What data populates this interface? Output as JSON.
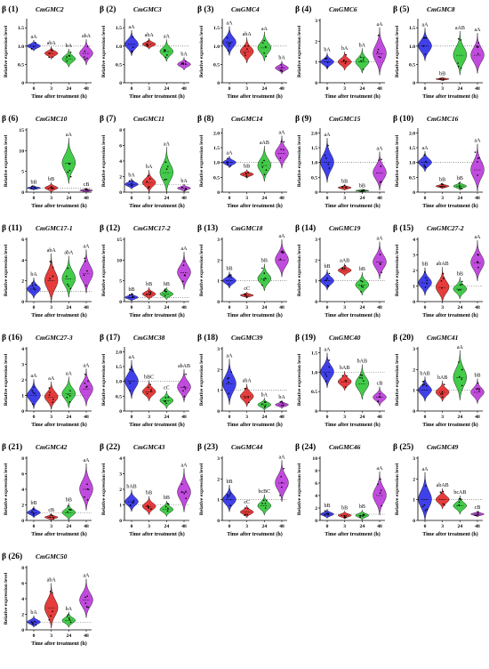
{
  "shared": {
    "xlabel": "Time after treatment (h)",
    "ylabel": "Relative expression level",
    "colors": [
      "#1f1fe6",
      "#e21a1a",
      "#22c22a",
      "#b62bd8"
    ]
  },
  "chart_data": [
    {
      "type": "violin",
      "panel": "β (1)",
      "gene": "CmGMC2",
      "categories": [
        "0",
        "3",
        "24",
        "48"
      ],
      "yticks": [
        0,
        0.5,
        1.0,
        1.5
      ],
      "ylim": [
        0,
        1.7
      ],
      "medians": [
        1.0,
        0.8,
        0.65,
        0.8
      ],
      "spreads": [
        0.3,
        0.35,
        0.5,
        0.7
      ],
      "sig_labels": [
        "aA",
        "abA",
        "bA",
        "abA"
      ]
    },
    {
      "type": "violin",
      "panel": "β (2)",
      "gene": "CmGMC3",
      "categories": [
        "0",
        "3",
        "24",
        "48"
      ],
      "yticks": [
        0,
        0.5,
        1.0,
        1.5
      ],
      "ylim": [
        0,
        1.7
      ],
      "medians": [
        1.05,
        1.05,
        0.85,
        0.5
      ],
      "spreads": [
        0.7,
        0.3,
        0.6,
        0.35
      ],
      "sig_labels": [
        "aA",
        "abA",
        "aA",
        "bA"
      ]
    },
    {
      "type": "violin",
      "panel": "β (3)",
      "gene": "CmGMC4",
      "categories": [
        "0",
        "3",
        "24",
        "48"
      ],
      "yticks": [
        0,
        0.5,
        1.0,
        1.5
      ],
      "ylim": [
        0,
        1.7
      ],
      "medians": [
        1.1,
        0.85,
        0.95,
        0.4
      ],
      "spreads": [
        0.8,
        0.7,
        0.8,
        0.35
      ],
      "sig_labels": [
        "aA",
        "abA",
        "aA",
        "bA"
      ]
    },
    {
      "type": "violin",
      "panel": "β (4)",
      "gene": "CmGMC6",
      "categories": [
        "0",
        "3",
        "24",
        "48"
      ],
      "yticks": [
        0,
        1,
        2,
        3
      ],
      "ylim": [
        0,
        3
      ],
      "medians": [
        1.0,
        1.0,
        1.0,
        1.4
      ],
      "spreads": [
        0.8,
        0.9,
        1.2,
        2.3
      ],
      "sig_labels": [
        "bA",
        "bA",
        "bA",
        "aA"
      ]
    },
    {
      "type": "violin",
      "panel": "β (5)",
      "gene": "CmGMC8",
      "categories": [
        "0",
        "3",
        "24",
        "48"
      ],
      "yticks": [
        0,
        0.5,
        1.0,
        1.5
      ],
      "ylim": [
        0,
        1.7
      ],
      "medians": [
        1.0,
        0.1,
        0.75,
        0.75
      ],
      "spreads": [
        0.9,
        0.1,
        1.2,
        1.1
      ],
      "sig_labels": [
        "aA",
        "bB",
        "aAB",
        "aA"
      ]
    },
    {
      "type": "violin",
      "panel": "β (6)",
      "gene": "CmGMC10",
      "categories": [
        "0",
        "3",
        "24",
        "48"
      ],
      "yticks": [
        0,
        5,
        10,
        15
      ],
      "ylim": [
        0,
        15
      ],
      "medians": [
        1.0,
        1.0,
        7,
        0.4
      ],
      "spreads": [
        1.2,
        2.5,
        11,
        1.2
      ],
      "sig_labels": [
        "bB",
        "bB",
        "aA",
        "cB"
      ]
    },
    {
      "type": "violin",
      "panel": "β (7)",
      "gene": "CmGMC11",
      "categories": [
        "0",
        "3",
        "24",
        "48"
      ],
      "yticks": [
        0,
        2,
        4,
        6,
        8
      ],
      "ylim": [
        0,
        8
      ],
      "medians": [
        1.0,
        1.2,
        2.5,
        0.5
      ],
      "spreads": [
        1.4,
        3.0,
        6.0,
        1.0
      ],
      "sig_labels": [
        "bA",
        "bA",
        "aA",
        "bA"
      ]
    },
    {
      "type": "violin",
      "panel": "β (8)",
      "gene": "CmGMC14",
      "categories": [
        "0",
        "3",
        "24",
        "48"
      ],
      "yticks": [
        0,
        0.5,
        1.0,
        1.5,
        2.0
      ],
      "ylim": [
        0,
        2.1
      ],
      "medians": [
        1.0,
        0.6,
        0.9,
        1.3
      ],
      "spreads": [
        0.4,
        0.3,
        1.2,
        1.1
      ],
      "sig_labels": [
        "aA",
        "bB",
        "aAB",
        "aA"
      ]
    },
    {
      "type": "violin",
      "panel": "β (9)",
      "gene": "CmGMC15",
      "categories": [
        "0",
        "3",
        "24",
        "48"
      ],
      "yticks": [
        0,
        0.5,
        1.0,
        1.5,
        2.0
      ],
      "ylim": [
        0,
        2.1
      ],
      "medians": [
        1.0,
        0.15,
        0.05,
        0.65
      ],
      "spreads": [
        1.5,
        0.2,
        0.1,
        1.3
      ],
      "sig_labels": [
        "aA",
        "bB",
        "bB",
        "aA"
      ]
    },
    {
      "type": "violin",
      "panel": "β (10)",
      "gene": "CmGMC16",
      "categories": [
        "0",
        "3",
        "24",
        "48"
      ],
      "yticks": [
        0,
        0.5,
        1.0,
        1.5,
        2.0
      ],
      "ylim": [
        0,
        2.1
      ],
      "medians": [
        1.0,
        0.2,
        0.2,
        0.75
      ],
      "spreads": [
        0.7,
        0.2,
        0.3,
        1.6
      ],
      "sig_labels": [
        "aA",
        "bB",
        "bB",
        "aA"
      ]
    },
    {
      "type": "violin",
      "panel": "β (11)",
      "gene": "CmGMC17-1",
      "categories": [
        "0",
        "3",
        "24",
        "48"
      ],
      "yticks": [
        0,
        2,
        4,
        6
      ],
      "ylim": [
        0,
        6
      ],
      "medians": [
        1.2,
        2.0,
        2.2,
        2.7
      ],
      "spreads": [
        2.0,
        4.8,
        4.0,
        4.2
      ],
      "sig_labels": [
        "bA",
        "abA",
        "abA",
        "aA"
      ]
    },
    {
      "type": "violin",
      "panel": "β (12)",
      "gene": "CmGMC17-2",
      "categories": [
        "0",
        "3",
        "24",
        "48"
      ],
      "yticks": [
        0,
        5,
        10,
        15
      ],
      "ylim": [
        0,
        15
      ],
      "medians": [
        1.0,
        1.8,
        1.8,
        7.0
      ],
      "spreads": [
        2.0,
        3.0,
        3.0,
        9.0
      ],
      "sig_labels": [
        "bB",
        "bB",
        "bB",
        "aA"
      ]
    },
    {
      "type": "violin",
      "panel": "β (13)",
      "gene": "CmGMC18",
      "categories": [
        "0",
        "3",
        "24",
        "48"
      ],
      "yticks": [
        0,
        1,
        2,
        3
      ],
      "ylim": [
        0,
        3
      ],
      "medians": [
        1.0,
        0.3,
        1.1,
        2.0
      ],
      "spreads": [
        0.8,
        0.3,
        1.3,
        1.8
      ],
      "sig_labels": [
        "bB",
        "cC",
        "bB",
        "aA"
      ]
    },
    {
      "type": "violin",
      "panel": "β (14)",
      "gene": "CmGMC19",
      "categories": [
        "0",
        "3",
        "24",
        "48"
      ],
      "yticks": [
        0,
        1,
        2,
        3
      ],
      "ylim": [
        0,
        3
      ],
      "medians": [
        1.0,
        1.5,
        0.8,
        1.9
      ],
      "spreads": [
        1.0,
        0.6,
        1.1,
        1.8
      ],
      "sig_labels": [
        "bB",
        "aAB",
        "bB",
        "aA"
      ]
    },
    {
      "type": "violin",
      "panel": "β (15)",
      "gene": "CmGMC27-2",
      "categories": [
        "0",
        "3",
        "24",
        "48"
      ],
      "yticks": [
        0,
        1,
        2,
        3,
        4
      ],
      "ylim": [
        0,
        4
      ],
      "medians": [
        1.2,
        0.9,
        0.8,
        2.5
      ],
      "spreads": [
        1.8,
        2.4,
        1.4,
        2.6
      ],
      "sig_labels": [
        "bB",
        "abAB",
        "bB",
        "aA"
      ]
    },
    {
      "type": "violin",
      "panel": "β (16)",
      "gene": "CmGMC27-3",
      "categories": [
        "0",
        "3",
        "24",
        "48"
      ],
      "yticks": [
        0,
        1,
        2,
        3,
        4
      ],
      "ylim": [
        0,
        4
      ],
      "medians": [
        1.0,
        0.9,
        1.1,
        1.4
      ],
      "spreads": [
        1.9,
        1.8,
        2.0,
        2.4
      ],
      "sig_labels": [
        "aA",
        "aA",
        "aA",
        "aA"
      ]
    },
    {
      "type": "violin",
      "panel": "β (17)",
      "gene": "CmGMC38",
      "categories": [
        "0",
        "3",
        "24",
        "48"
      ],
      "yticks": [
        0,
        0.5,
        1.0,
        1.5,
        2.0
      ],
      "ylim": [
        0,
        2.1
      ],
      "medians": [
        1.0,
        0.65,
        0.35,
        0.8
      ],
      "spreads": [
        1.3,
        0.7,
        0.6,
        1.1
      ],
      "sig_labels": [
        "aA",
        "bBC",
        "cC",
        "abAB"
      ]
    },
    {
      "type": "violin",
      "panel": "β (18)",
      "gene": "CmGMC39",
      "categories": [
        "0",
        "3",
        "24",
        "48"
      ],
      "yticks": [
        0,
        1,
        2,
        3
      ],
      "ylim": [
        0,
        3
      ],
      "medians": [
        1.3,
        0.7,
        0.3,
        0.3
      ],
      "spreads": [
        2.2,
        1.1,
        0.6,
        0.4
      ],
      "sig_labels": [
        "aA",
        "abA",
        "bA",
        "bA"
      ]
    },
    {
      "type": "violin",
      "panel": "β (19)",
      "gene": "CmGMC40",
      "categories": [
        "0",
        "3",
        "24",
        "48"
      ],
      "yticks": [
        0,
        0.5,
        1.0,
        1.5
      ],
      "ylim": [
        0,
        1.6
      ],
      "medians": [
        1.0,
        0.75,
        0.7,
        0.35
      ],
      "spreads": [
        0.9,
        0.5,
        0.9,
        0.5
      ],
      "sig_labels": [
        "aA",
        "bAB",
        "bAB",
        "cB"
      ]
    },
    {
      "type": "violin",
      "panel": "β (20)",
      "gene": "CmGMC41",
      "categories": [
        "0",
        "3",
        "24",
        "48"
      ],
      "yticks": [
        0,
        1,
        2,
        3
      ],
      "ylim": [
        0,
        3
      ],
      "medians": [
        1.0,
        0.9,
        1.6,
        0.9
      ],
      "spreads": [
        1.2,
        1.0,
        2.4,
        1.2
      ],
      "sig_labels": [
        "bAB",
        "bAB",
        "aA",
        "bB"
      ]
    },
    {
      "type": "violin",
      "panel": "β (21)",
      "gene": "CmGMC42",
      "categories": [
        "0",
        "3",
        "24",
        "48"
      ],
      "yticks": [
        0,
        2,
        4,
        6,
        8
      ],
      "ylim": [
        0,
        8
      ],
      "medians": [
        1.0,
        0.4,
        1.0,
        4.0
      ],
      "spreads": [
        1.5,
        0.9,
        2.2,
        6.0
      ],
      "sig_labels": [
        "bB",
        "cB",
        "bB",
        "aA"
      ]
    },
    {
      "type": "violin",
      "panel": "β (22)",
      "gene": "CmGMC43",
      "categories": [
        "0",
        "3",
        "24",
        "48"
      ],
      "yticks": [
        0,
        1,
        2,
        3,
        4
      ],
      "ylim": [
        0,
        4
      ],
      "medians": [
        1.2,
        0.9,
        0.7,
        1.8
      ],
      "spreads": [
        1.4,
        1.2,
        1.0,
        2.8
      ],
      "sig_labels": [
        "bAB",
        "bB",
        "bB",
        "aA"
      ]
    },
    {
      "type": "violin",
      "panel": "β (23)",
      "gene": "CmGMC44",
      "categories": [
        "0",
        "3",
        "24",
        "48"
      ],
      "yticks": [
        0,
        1,
        2,
        3
      ],
      "ylim": [
        0,
        3
      ],
      "medians": [
        1.0,
        0.4,
        0.7,
        1.8
      ],
      "spreads": [
        1.3,
        0.6,
        1.0,
        2.0
      ],
      "sig_labels": [
        "bB",
        "cC",
        "bcBC",
        "aA"
      ]
    },
    {
      "type": "violin",
      "panel": "β (24)",
      "gene": "CmGMC46",
      "categories": [
        "0",
        "3",
        "24",
        "48"
      ],
      "yticks": [
        0,
        2,
        4,
        6,
        8,
        10
      ],
      "ylim": [
        0,
        10
      ],
      "medians": [
        1.0,
        0.8,
        0.8,
        4.0
      ],
      "spreads": [
        1.5,
        1.3,
        1.6,
        7.0
      ],
      "sig_labels": [
        "bB",
        "bB",
        "bB",
        "aA"
      ]
    },
    {
      "type": "violin",
      "panel": "β (25)",
      "gene": "CmGMC49",
      "categories": [
        "0",
        "3",
        "24",
        "48"
      ],
      "yticks": [
        0,
        1,
        2,
        3
      ],
      "ylim": [
        0,
        3
      ],
      "medians": [
        1.0,
        1.0,
        0.7,
        0.3
      ],
      "spreads": [
        2.4,
        1.0,
        0.9,
        0.3
      ],
      "sig_labels": [
        "aA",
        "abAB",
        "bcAB",
        "cB"
      ]
    },
    {
      "type": "violin",
      "panel": "β (26)",
      "gene": "CmGMC50",
      "categories": [
        "0",
        "3",
        "24",
        "48"
      ],
      "yticks": [
        0,
        2,
        4,
        6,
        8
      ],
      "ylim": [
        0,
        8
      ],
      "medians": [
        1.0,
        2.8,
        1.2,
        3.8
      ],
      "spreads": [
        1.5,
        5.8,
        2.0,
        5.0
      ],
      "sig_labels": [
        "bA",
        "abA",
        "bA",
        "aA"
      ]
    }
  ]
}
